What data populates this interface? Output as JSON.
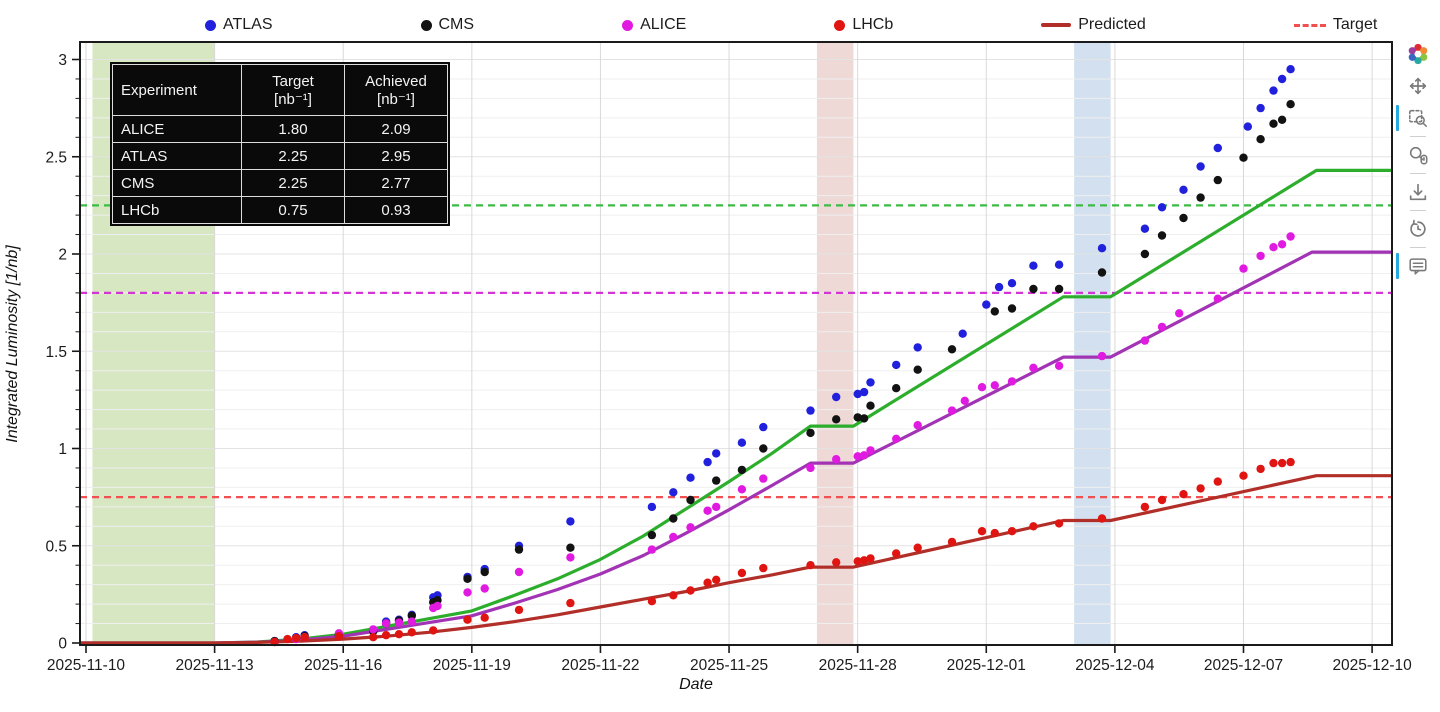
{
  "legend": {
    "items": [
      {
        "label": "ATLAS",
        "marker": "dot",
        "color": "#2121dd"
      },
      {
        "label": "CMS",
        "marker": "dot",
        "color": "#121212"
      },
      {
        "label": "ALICE",
        "marker": "dot",
        "color": "#e01ae0"
      },
      {
        "label": "LHCb",
        "marker": "dot",
        "color": "#e01512"
      },
      {
        "label": "Predicted",
        "marker": "line",
        "color": "#b22e28"
      },
      {
        "label": "Target",
        "marker": "dash",
        "color": "#f25050"
      }
    ]
  },
  "table": {
    "headers": [
      {
        "title": "Experiment",
        "unit": ""
      },
      {
        "title": "Target",
        "unit": "[nb⁻¹]"
      },
      {
        "title": "Achieved",
        "unit": "[nb⁻¹]"
      }
    ],
    "rows": [
      [
        "ALICE",
        "1.80",
        "2.09"
      ],
      [
        "ATLAS",
        "2.25",
        "2.95"
      ],
      [
        "CMS",
        "2.25",
        "2.77"
      ],
      [
        "LHCb",
        "0.75",
        "0.93"
      ]
    ]
  },
  "toolbar": {
    "active_color": "#26aae1",
    "tools": [
      {
        "name": "bokeh-logo",
        "active": false
      },
      {
        "name": "pan",
        "active": false
      },
      {
        "name": "box-zoom",
        "active": true
      },
      {
        "name": "wheel-zoom",
        "active": false
      },
      {
        "name": "save",
        "active": false
      },
      {
        "name": "reset",
        "active": false
      },
      {
        "name": "hover",
        "active": true
      }
    ],
    "separators_after": [
      2,
      3,
      4,
      5
    ]
  },
  "chart_data": {
    "type": "scatter",
    "title": "",
    "xlabel": "Date",
    "ylabel": "Integrated Luminosity [1/nb]",
    "x_axis": {
      "tick_days": [
        0,
        3,
        6,
        9,
        12,
        15,
        18,
        21,
        24,
        27,
        30
      ],
      "tick_labels": [
        "2025-11-10",
        "2025-11-13",
        "2025-11-16",
        "2025-11-19",
        "2025-11-22",
        "2025-11-25",
        "2025-11-28",
        "2025-12-01",
        "2025-12-04",
        "2025-12-07",
        "2025-12-10"
      ],
      "range_days": [
        -0.14,
        30.47
      ]
    },
    "y_axis": {
      "ticks": [
        0,
        0.5,
        1,
        1.5,
        2,
        2.5,
        3
      ],
      "tick_labels": [
        "0",
        "0.5",
        "1",
        "1.5",
        "2",
        "2.5",
        "3"
      ],
      "range": [
        0,
        3.09
      ],
      "minor_step": 0.1
    },
    "grid": {
      "h_color": "#efefef",
      "h_major_color": "#e3e3e3",
      "v_color": "#d9d9d9"
    },
    "bands": [
      {
        "name": "green-band",
        "from_day": 0.15,
        "to_day": 3.0,
        "color": "#d7e7c2"
      },
      {
        "name": "pink-band",
        "from_day": 17.05,
        "to_day": 17.9,
        "color": "#eed9d7"
      },
      {
        "name": "blue-band",
        "from_day": 23.05,
        "to_day": 23.9,
        "color": "#d2e0ef"
      }
    ],
    "targets": [
      {
        "name": "ATLAS/CMS target",
        "value": 2.25,
        "color": "#3cbb45"
      },
      {
        "name": "ALICE target",
        "value": 1.8,
        "color": "#d434d4"
      },
      {
        "name": "LHCb target",
        "value": 0.75,
        "color": "#f25050"
      }
    ],
    "predicted": [
      {
        "name": "ATLAS/CMS predicted",
        "color": "#2cae2c",
        "points": [
          [
            -0.14,
            0
          ],
          [
            3,
            0
          ],
          [
            4,
            0.005
          ],
          [
            5,
            0.02
          ],
          [
            6,
            0.045
          ],
          [
            7,
            0.085
          ],
          [
            8,
            0.125
          ],
          [
            9,
            0.165
          ],
          [
            10,
            0.245
          ],
          [
            11,
            0.33
          ],
          [
            12,
            0.43
          ],
          [
            13,
            0.55
          ],
          [
            14,
            0.69
          ],
          [
            15,
            0.83
          ],
          [
            16,
            0.975
          ],
          [
            16.9,
            1.115
          ],
          [
            17.9,
            1.115
          ],
          [
            22.8,
            1.78
          ],
          [
            23.9,
            1.78
          ],
          [
            28.7,
            2.43
          ],
          [
            30.47,
            2.43
          ]
        ]
      },
      {
        "name": "ALICE predicted",
        "color": "#a233b4",
        "points": [
          [
            -0.14,
            0
          ],
          [
            3,
            0
          ],
          [
            4,
            0.004
          ],
          [
            5,
            0.015
          ],
          [
            6,
            0.035
          ],
          [
            7,
            0.07
          ],
          [
            8,
            0.105
          ],
          [
            9,
            0.14
          ],
          [
            10,
            0.205
          ],
          [
            11,
            0.275
          ],
          [
            12,
            0.355
          ],
          [
            13,
            0.45
          ],
          [
            14,
            0.565
          ],
          [
            15,
            0.685
          ],
          [
            16,
            0.81
          ],
          [
            16.9,
            0.925
          ],
          [
            17.9,
            0.925
          ],
          [
            22.8,
            1.47
          ],
          [
            23.9,
            1.47
          ],
          [
            28.6,
            2.01
          ],
          [
            30.47,
            2.01
          ]
        ]
      },
      {
        "name": "LHCb predicted",
        "color": "#b22e28",
        "points": [
          [
            -0.14,
            0
          ],
          [
            3,
            0
          ],
          [
            4,
            0.003
          ],
          [
            5,
            0.01
          ],
          [
            6,
            0.02
          ],
          [
            7,
            0.035
          ],
          [
            8,
            0.055
          ],
          [
            9,
            0.08
          ],
          [
            10,
            0.11
          ],
          [
            11,
            0.145
          ],
          [
            12,
            0.185
          ],
          [
            13,
            0.225
          ],
          [
            14,
            0.265
          ],
          [
            15,
            0.31
          ],
          [
            16,
            0.35
          ],
          [
            16.9,
            0.39
          ],
          [
            17.9,
            0.39
          ],
          [
            22.8,
            0.63
          ],
          [
            23.9,
            0.63
          ],
          [
            28.7,
            0.86
          ],
          [
            30.47,
            0.86
          ]
        ]
      }
    ],
    "series": [
      {
        "name": "ATLAS",
        "color": "#2121dd",
        "points": [
          [
            4.4,
            0.01
          ],
          [
            4.9,
            0.03
          ],
          [
            5.1,
            0.04
          ],
          [
            5.9,
            0.045
          ],
          [
            6.7,
            0.065
          ],
          [
            7.0,
            0.11
          ],
          [
            7.3,
            0.12
          ],
          [
            7.6,
            0.145
          ],
          [
            8.1,
            0.235
          ],
          [
            8.2,
            0.245
          ],
          [
            8.9,
            0.34
          ],
          [
            9.3,
            0.38
          ],
          [
            10.1,
            0.5
          ],
          [
            11.3,
            0.625
          ],
          [
            13.2,
            0.7
          ],
          [
            13.7,
            0.775
          ],
          [
            14.1,
            0.85
          ],
          [
            14.5,
            0.93
          ],
          [
            14.7,
            0.975
          ],
          [
            15.3,
            1.03
          ],
          [
            15.8,
            1.11
          ],
          [
            16.9,
            1.195
          ],
          [
            17.5,
            1.265
          ],
          [
            18.0,
            1.28
          ],
          [
            18.15,
            1.29
          ],
          [
            18.3,
            1.34
          ],
          [
            18.9,
            1.43
          ],
          [
            19.4,
            1.52
          ],
          [
            20.45,
            1.59
          ],
          [
            21.0,
            1.74
          ],
          [
            21.3,
            1.83
          ],
          [
            21.6,
            1.85
          ],
          [
            22.1,
            1.94
          ],
          [
            22.7,
            1.945
          ],
          [
            23.7,
            2.03
          ],
          [
            24.7,
            2.13
          ],
          [
            25.1,
            2.24
          ],
          [
            25.6,
            2.33
          ],
          [
            26.0,
            2.45
          ],
          [
            26.4,
            2.545
          ],
          [
            27.1,
            2.655
          ],
          [
            27.4,
            2.75
          ],
          [
            27.7,
            2.84
          ],
          [
            27.9,
            2.9
          ],
          [
            28.1,
            2.95
          ]
        ]
      },
      {
        "name": "CMS",
        "color": "#121212",
        "points": [
          [
            4.4,
            0.01
          ],
          [
            4.9,
            0.025
          ],
          [
            5.1,
            0.035
          ],
          [
            5.9,
            0.04
          ],
          [
            6.7,
            0.06
          ],
          [
            7.0,
            0.1
          ],
          [
            7.3,
            0.115
          ],
          [
            7.6,
            0.14
          ],
          [
            8.1,
            0.21
          ],
          [
            8.2,
            0.22
          ],
          [
            8.9,
            0.33
          ],
          [
            9.3,
            0.365
          ],
          [
            10.1,
            0.48
          ],
          [
            11.3,
            0.49
          ],
          [
            13.2,
            0.555
          ],
          [
            13.7,
            0.64
          ],
          [
            14.1,
            0.735
          ],
          [
            14.7,
            0.835
          ],
          [
            15.3,
            0.89
          ],
          [
            15.8,
            1.0
          ],
          [
            16.9,
            1.08
          ],
          [
            17.5,
            1.15
          ],
          [
            18.0,
            1.16
          ],
          [
            18.15,
            1.155
          ],
          [
            18.3,
            1.22
          ],
          [
            18.9,
            1.31
          ],
          [
            19.4,
            1.405
          ],
          [
            20.2,
            1.51
          ],
          [
            21.2,
            1.705
          ],
          [
            21.6,
            1.72
          ],
          [
            22.1,
            1.82
          ],
          [
            22.7,
            1.82
          ],
          [
            23.7,
            1.905
          ],
          [
            24.7,
            2.0
          ],
          [
            25.1,
            2.095
          ],
          [
            25.6,
            2.185
          ],
          [
            26.0,
            2.29
          ],
          [
            26.4,
            2.38
          ],
          [
            27.0,
            2.495
          ],
          [
            27.4,
            2.59
          ],
          [
            27.7,
            2.67
          ],
          [
            27.9,
            2.69
          ],
          [
            28.1,
            2.77
          ]
        ]
      },
      {
        "name": "ALICE",
        "color": "#e01ae0",
        "points": [
          [
            4.4,
            0.005
          ],
          [
            4.9,
            0.02
          ],
          [
            5.1,
            0.03
          ],
          [
            5.9,
            0.05
          ],
          [
            6.7,
            0.07
          ],
          [
            7.0,
            0.1
          ],
          [
            7.3,
            0.105
          ],
          [
            7.6,
            0.11
          ],
          [
            8.1,
            0.18
          ],
          [
            8.2,
            0.19
          ],
          [
            8.9,
            0.26
          ],
          [
            9.3,
            0.28
          ],
          [
            10.1,
            0.365
          ],
          [
            11.3,
            0.44
          ],
          [
            13.2,
            0.48
          ],
          [
            13.7,
            0.545
          ],
          [
            14.1,
            0.595
          ],
          [
            14.5,
            0.68
          ],
          [
            14.7,
            0.7
          ],
          [
            15.3,
            0.79
          ],
          [
            15.8,
            0.845
          ],
          [
            16.9,
            0.9
          ],
          [
            17.5,
            0.945
          ],
          [
            18.0,
            0.96
          ],
          [
            18.15,
            0.965
          ],
          [
            18.3,
            0.99
          ],
          [
            18.9,
            1.05
          ],
          [
            19.4,
            1.12
          ],
          [
            20.2,
            1.195
          ],
          [
            20.5,
            1.245
          ],
          [
            20.9,
            1.315
          ],
          [
            21.2,
            1.325
          ],
          [
            21.6,
            1.345
          ],
          [
            22.1,
            1.415
          ],
          [
            22.7,
            1.425
          ],
          [
            23.7,
            1.475
          ],
          [
            24.7,
            1.555
          ],
          [
            25.1,
            1.625
          ],
          [
            25.5,
            1.695
          ],
          [
            26.4,
            1.77
          ],
          [
            27.0,
            1.925
          ],
          [
            27.4,
            1.99
          ],
          [
            27.7,
            2.035
          ],
          [
            27.9,
            2.05
          ],
          [
            28.1,
            2.09
          ]
        ]
      },
      {
        "name": "LHCb",
        "color": "#e01512",
        "points": [
          [
            4.4,
            0.005
          ],
          [
            4.7,
            0.02
          ],
          [
            4.9,
            0.025
          ],
          [
            5.1,
            0.03
          ],
          [
            5.9,
            0.035
          ],
          [
            6.7,
            0.03
          ],
          [
            7.0,
            0.04
          ],
          [
            7.3,
            0.045
          ],
          [
            7.6,
            0.055
          ],
          [
            8.1,
            0.065
          ],
          [
            8.9,
            0.12
          ],
          [
            9.3,
            0.13
          ],
          [
            10.1,
            0.17
          ],
          [
            11.3,
            0.205
          ],
          [
            13.2,
            0.215
          ],
          [
            13.7,
            0.245
          ],
          [
            14.1,
            0.27
          ],
          [
            14.5,
            0.31
          ],
          [
            14.7,
            0.325
          ],
          [
            15.3,
            0.36
          ],
          [
            15.8,
            0.385
          ],
          [
            16.9,
            0.4
          ],
          [
            17.5,
            0.415
          ],
          [
            18.0,
            0.42
          ],
          [
            18.15,
            0.425
          ],
          [
            18.3,
            0.435
          ],
          [
            18.9,
            0.46
          ],
          [
            19.4,
            0.49
          ],
          [
            20.2,
            0.52
          ],
          [
            20.9,
            0.575
          ],
          [
            21.2,
            0.565
          ],
          [
            21.6,
            0.575
          ],
          [
            22.1,
            0.6
          ],
          [
            22.7,
            0.615
          ],
          [
            23.7,
            0.64
          ],
          [
            24.7,
            0.7
          ],
          [
            25.1,
            0.735
          ],
          [
            25.6,
            0.765
          ],
          [
            26.0,
            0.795
          ],
          [
            26.4,
            0.83
          ],
          [
            27.0,
            0.86
          ],
          [
            27.4,
            0.895
          ],
          [
            27.7,
            0.925
          ],
          [
            27.9,
            0.925
          ],
          [
            28.1,
            0.93
          ]
        ]
      }
    ]
  }
}
